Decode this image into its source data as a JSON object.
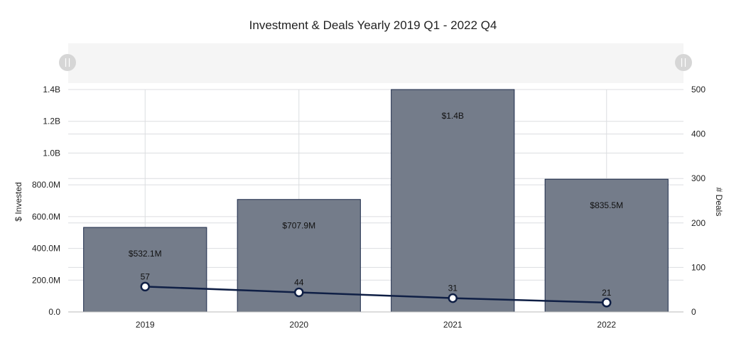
{
  "chart_data": {
    "type": "bar+line",
    "title": "Investment & Deals Yearly 2019 Q1 - 2022 Q4",
    "categories": [
      "2019",
      "2020",
      "2021",
      "2022"
    ],
    "series": [
      {
        "name": "$ Invested",
        "type": "bar",
        "axis": "left",
        "values": [
          532100000,
          707900000,
          1400000000,
          835500000
        ],
        "labels": [
          "$532.1M",
          "$707.9M",
          "$1.4B",
          "$835.5M"
        ]
      },
      {
        "name": "# Deals",
        "type": "line",
        "axis": "right",
        "values": [
          57,
          44,
          31,
          21
        ],
        "labels": [
          "57",
          "44",
          "31",
          "21"
        ]
      }
    ],
    "left_axis": {
      "label": "$ Invested",
      "ylim": [
        0,
        1400000000
      ],
      "tick_values": [
        0,
        200000000,
        400000000,
        600000000,
        800000000,
        1000000000,
        1200000000,
        1400000000
      ],
      "tick_labels": [
        "0.0",
        "200.0M",
        "400.0M",
        "600.0M",
        "800.0M",
        "1.0B",
        "1.2B",
        "1.4B"
      ]
    },
    "right_axis": {
      "label": "# Deals",
      "ylim": [
        0,
        500
      ],
      "tick_values": [
        0,
        100,
        200,
        300,
        400,
        500
      ],
      "tick_labels": [
        "0",
        "100",
        "200",
        "300",
        "400",
        "500"
      ]
    },
    "grid": true,
    "colors": {
      "bar_fill": "#747c8a",
      "bar_stroke": "#1c2a4a",
      "line": "#0f1f45",
      "marker_fill": "#ffffff",
      "grid": "#dcdde0",
      "navigator_bg": "#f5f5f5",
      "handle": "#d6d6d6",
      "text": "#222222"
    }
  }
}
